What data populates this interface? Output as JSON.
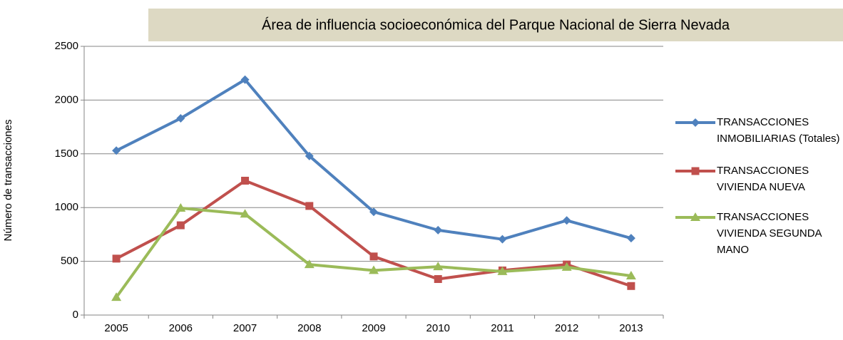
{
  "chart_data": {
    "type": "line",
    "title": "Área de influencia socioeconómica del Parque Nacional de Sierra Nevada",
    "y_label": "Número de transacciones",
    "categories": [
      "2005",
      "2006",
      "2007",
      "2008",
      "2009",
      "2010",
      "2011",
      "2012",
      "2013"
    ],
    "series": [
      {
        "name": "TRANSACCIONES INMOBILIARIAS (Totales)",
        "color": "#4f81bd",
        "marker": "diamond",
        "values": [
          1530,
          1830,
          2190,
          1480,
          960,
          790,
          705,
          880,
          715
        ]
      },
      {
        "name": "TRANSACCIONES VIVIENDA NUEVA",
        "color": "#c0504d",
        "marker": "square",
        "values": [
          525,
          835,
          1250,
          1015,
          545,
          335,
          415,
          470,
          270
        ]
      },
      {
        "name": "TRANSACCIONES VIVIENDA SEGUNDA MANO",
        "color": "#9bbb59",
        "marker": "triangle",
        "values": [
          165,
          995,
          940,
          470,
          415,
          450,
          405,
          445,
          365
        ]
      }
    ],
    "ylim": [
      0,
      2500
    ],
    "yticks": [
      0,
      500,
      1000,
      1500,
      2000,
      2500
    ],
    "grid": true,
    "legend": "right"
  }
}
